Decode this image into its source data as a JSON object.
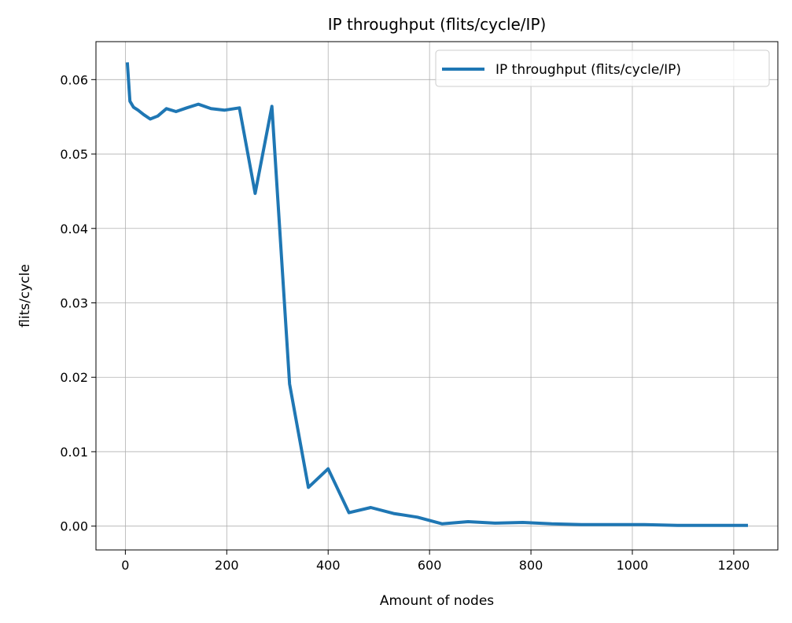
{
  "chart_data": {
    "type": "line",
    "title": "IP throughput (flits/cycle/IP)",
    "xlabel": "Amount of nodes",
    "ylabel": "flits/cycle",
    "xlim": [
      -58,
      1287
    ],
    "ylim": [
      -0.0032,
      0.0651
    ],
    "xticks": [
      0,
      200,
      400,
      600,
      800,
      1000,
      1200
    ],
    "yticks": [
      0.0,
      0.01,
      0.02,
      0.03,
      0.04,
      0.05,
      0.06
    ],
    "xtick_labels": [
      "0",
      "200",
      "400",
      "600",
      "800",
      "1000",
      "1200"
    ],
    "ytick_labels": [
      "0.00",
      "0.01",
      "0.02",
      "0.03",
      "0.04",
      "0.05",
      "0.06"
    ],
    "grid": true,
    "legend_position": "top-right",
    "series": [
      {
        "name": "IP throughput (flits/cycle/IP)",
        "color": "#1f77b4",
        "x": [
          4,
          9,
          16,
          25,
          36,
          49,
          64,
          81,
          100,
          121,
          144,
          169,
          196,
          225,
          256,
          289,
          324,
          361,
          400,
          441,
          484,
          529,
          576,
          625,
          676,
          729,
          784,
          841,
          900,
          961,
          1024,
          1089,
          1156,
          1225
        ],
        "y": [
          0.0621,
          0.0571,
          0.0563,
          0.0559,
          0.0553,
          0.0547,
          0.0551,
          0.0561,
          0.0557,
          0.0562,
          0.0567,
          0.0561,
          0.0559,
          0.0562,
          0.0447,
          0.0564,
          0.0191,
          0.0052,
          0.0077,
          0.0018,
          0.0025,
          0.0017,
          0.0012,
          0.0003,
          0.0006,
          0.0004,
          0.0005,
          0.0003,
          0.0002,
          0.0002,
          0.0002,
          0.0001,
          0.0001,
          0.0001
        ]
      }
    ]
  }
}
